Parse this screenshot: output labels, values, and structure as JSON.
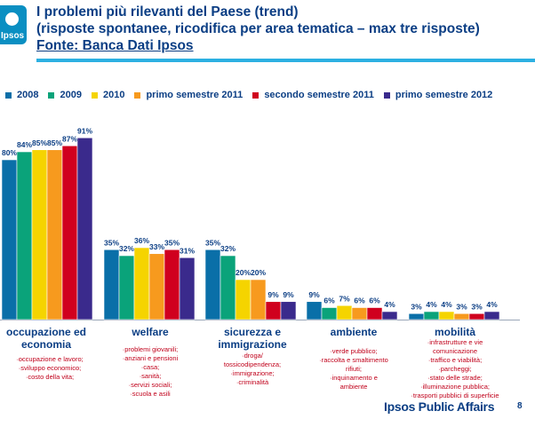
{
  "header": {
    "logo": "Ipsos",
    "title_line1": "I problemi più rilevanti del Paese (trend)",
    "title_line2": "(risposte spontanee, ricodifica per area tematica – max tre risposte)",
    "source": "Fonte:  Banca Dati Ipsos"
  },
  "footer": {
    "brand": "Ipsos Public Affairs",
    "page_number": "8"
  },
  "colors": {
    "title": "#0b3e84",
    "accent_rule": "#2cb0e2",
    "note_text": "#c0001a"
  },
  "chart_data": {
    "type": "bar",
    "categories": [
      "occupazione ed economia",
      "welfare",
      "sicurezza e immigrazione",
      "ambiente",
      "mobilità"
    ],
    "category_notes": [
      [
        "·occupazione e lavoro;",
        "·sviluppo economico;",
        "·costo della vita;"
      ],
      [
        "·problemi giovanili;",
        "·anziani e pensioni",
        "·casa;",
        "·sanità;",
        "·servizi sociali;",
        "·scuola e asili"
      ],
      [
        "·droga/",
        "tossicodipendenza;",
        "·immigrazione;",
        "·criminalità"
      ],
      [
        "·verde pubblico;",
        "·raccolta e smaltimento",
        "rifiuti;",
        "·inquinamento e",
        "ambiente"
      ],
      [
        "·infrastrutture e vie",
        "comunicazione",
        "·traffico e viabilità;",
        "·parcheggi;",
        "·stato delle strade;",
        "·illuminazione pubblica;",
        "·trasporti pubblici di superficie"
      ]
    ],
    "series": [
      {
        "name": "2008",
        "color": "#0a6fa8",
        "values": [
          80,
          35,
          35,
          9,
          3
        ]
      },
      {
        "name": "2009",
        "color": "#0aa37a",
        "values": [
          84,
          32,
          32,
          6,
          4
        ]
      },
      {
        "name": "2010",
        "color": "#f5d400",
        "values": [
          85,
          36,
          20,
          7,
          4
        ]
      },
      {
        "name": "primo semestre 2011",
        "color": "#f79a1e",
        "values": [
          85,
          33,
          20,
          6,
          3
        ]
      },
      {
        "name": "secondo semestre 2011",
        "color": "#d0001e",
        "values": [
          87,
          35,
          9,
          6,
          3
        ]
      },
      {
        "name": "primo semestre 2012",
        "color": "#3a2a8c",
        "values": [
          91,
          31,
          9,
          4,
          4
        ]
      }
    ],
    "value_format": "percent",
    "ylim": [
      0,
      100
    ],
    "grid": false,
    "legend_position": "top"
  }
}
